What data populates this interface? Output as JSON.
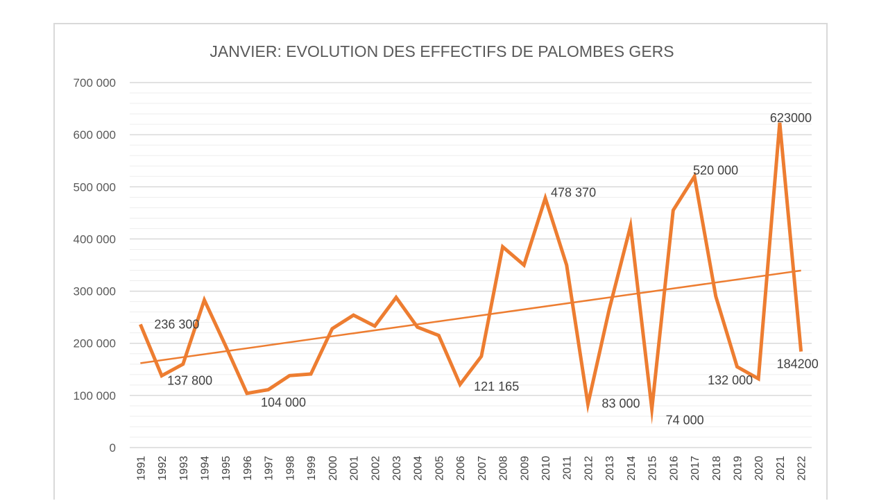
{
  "chart_data": {
    "type": "line",
    "title": "JANVIER: EVOLUTION DES EFFECTIFS DE PALOMBES GERS",
    "xlabel": "",
    "ylabel": "",
    "ylim": [
      0,
      700000
    ],
    "y_major_step": 100000,
    "y_minor_step": 20000,
    "y_tick_labels": [
      "0",
      "100 000",
      "200 000",
      "300 000",
      "400 000",
      "500 000",
      "600 000",
      "700 000"
    ],
    "categories": [
      "1991",
      "1992",
      "1993",
      "1994",
      "1995",
      "1996",
      "1997",
      "1998",
      "1999",
      "2000",
      "2001",
      "2002",
      "2003",
      "2004",
      "2005",
      "2006",
      "2007",
      "2008",
      "2009",
      "2010",
      "2011",
      "2012",
      "2013",
      "2014",
      "2015",
      "2016",
      "2017",
      "2018",
      "2019",
      "2020",
      "2021",
      "2022"
    ],
    "series": [
      {
        "name": "Effectifs",
        "color": "#ed7d31",
        "values": [
          236300,
          137800,
          160000,
          283000,
          195000,
          104000,
          111000,
          138000,
          141000,
          228000,
          254000,
          233000,
          288000,
          231000,
          215000,
          121165,
          175000,
          385000,
          350000,
          478370,
          350000,
          83000,
          265000,
          425000,
          74000,
          455000,
          520000,
          290000,
          155000,
          132000,
          623000,
          184200
        ]
      }
    ],
    "trendline": {
      "type": "linear",
      "color": "#ed7d31"
    },
    "data_labels": [
      {
        "category": "1991",
        "text": "236 300"
      },
      {
        "category": "1992",
        "text": "137 800"
      },
      {
        "category": "1996",
        "text": "104 000"
      },
      {
        "category": "2006",
        "text": "121 165"
      },
      {
        "category": "2010",
        "text": "478 370"
      },
      {
        "category": "2012",
        "text": "83 000"
      },
      {
        "category": "2015",
        "text": "74 000"
      },
      {
        "category": "2017",
        "text": "520 000"
      },
      {
        "category": "2020",
        "text": "132 000"
      },
      {
        "category": "2021",
        "text": "623000"
      },
      {
        "category": "2022",
        "text": "184200"
      }
    ],
    "grid": true,
    "legend": "none"
  }
}
